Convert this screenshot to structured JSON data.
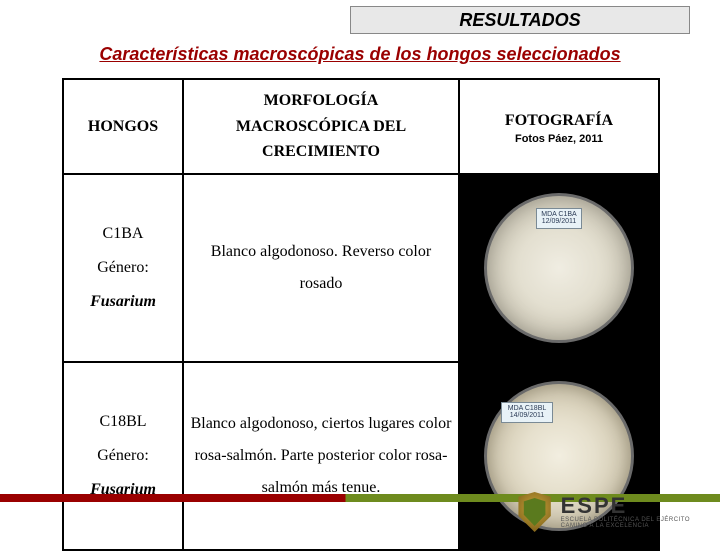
{
  "header": {
    "title": "RESULTADOS"
  },
  "sub_header": "Características macroscópicas de los hongos seleccionados",
  "table": {
    "headers": {
      "col1": "HONGOS",
      "col2_line1": "MORFOLOGÍA",
      "col2_line2": "MACROSCÓPICA DEL",
      "col2_line3": "CRECIMIENTO",
      "col3_line1": "FOTOGRAFÍA",
      "col3_line2": "Fotos Páez, 2011"
    },
    "rows": [
      {
        "code": "C1BA",
        "genus_label": "Género:",
        "genus": "Fusarium",
        "description": "Blanco algodonoso. Reverso color rosado",
        "photo_label_pos": "top",
        "photo_tag": "MDA C1BA 12/09/2011"
      },
      {
        "code": "C18BL",
        "genus_label": "Género:",
        "genus": "Fusarium",
        "description": "Blanco algodonoso, ciertos lugares color rosa-salmón. Parte posterior color rosa-salmón más tenue.",
        "photo_label_pos": "side",
        "photo_tag": "MDA C18BL 14/09/2011"
      }
    ]
  },
  "footer": {
    "logo_big": "ESPE",
    "logo_small1": "ESCUELA POLITÉCNICA DEL EJÉRCITO",
    "logo_small2": "CAMINO A LA EXCELENCIA"
  },
  "colors": {
    "accent_red": "#9a0000",
    "accent_green": "#6e8b1e",
    "header_bg": "#e8e8e8"
  }
}
